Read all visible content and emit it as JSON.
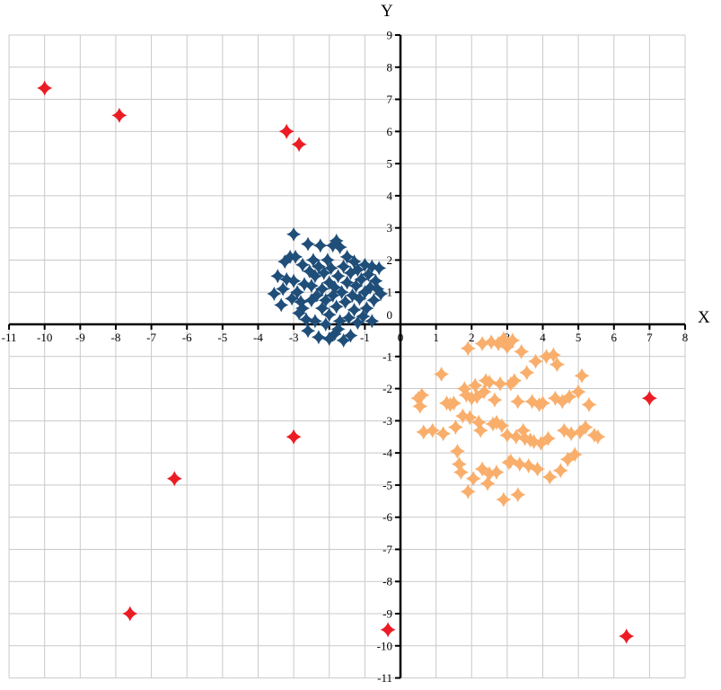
{
  "chart_data": {
    "type": "scatter",
    "title": "",
    "xlabel": "X",
    "ylabel": "Y",
    "xlim": [
      -11,
      8
    ],
    "ylim": [
      -11,
      9
    ],
    "x_ticks": [
      -11,
      -10,
      -9,
      -8,
      -7,
      -6,
      -5,
      -4,
      -3,
      -2,
      -1,
      0,
      1,
      2,
      3,
      4,
      5,
      6,
      7,
      8
    ],
    "y_ticks": [
      -11,
      -10,
      -9,
      -8,
      -7,
      -6,
      -5,
      -4,
      -3,
      -2,
      -1,
      0,
      1,
      2,
      3,
      4,
      5,
      6,
      7,
      8,
      9
    ],
    "grid": true,
    "legend": "none",
    "marker": "four-point-star",
    "colors": {
      "grid": "#C9C9C9",
      "axis": "#000000",
      "blue_cluster": "#1F4E79",
      "orange_cluster": "#F9AE6B",
      "outliers": "#EC1C24"
    },
    "series": [
      {
        "name": "blue-cluster",
        "color": "#1F4E79",
        "marker_radius": 7,
        "points": [
          [
            -3.55,
            0.95
          ],
          [
            -3.45,
            1.5
          ],
          [
            -3.35,
            0.6
          ],
          [
            -3.3,
            1.1
          ],
          [
            -3.25,
            1.95
          ],
          [
            -3.2,
            1.4
          ],
          [
            -3.1,
            2.1
          ],
          [
            -3.05,
            0.8
          ],
          [
            -3.0,
            2.8
          ],
          [
            -3.0,
            1.35
          ],
          [
            -2.95,
            2.1
          ],
          [
            -2.9,
            1.0
          ],
          [
            -2.85,
            0.35
          ],
          [
            -2.8,
            0.7
          ],
          [
            -2.75,
            1.85
          ],
          [
            -2.75,
            0.5
          ],
          [
            -2.7,
            1.25
          ],
          [
            -2.65,
            0.15
          ],
          [
            -2.6,
            2.5
          ],
          [
            -2.6,
            -0.2
          ],
          [
            -2.55,
            1.65
          ],
          [
            -2.5,
            0.75
          ],
          [
            -2.5,
            1.2
          ],
          [
            -2.45,
            2.0
          ],
          [
            -2.4,
            0.1
          ],
          [
            -2.4,
            1.5
          ],
          [
            -2.35,
            0.9
          ],
          [
            -2.3,
            -0.4
          ],
          [
            -2.3,
            1.8
          ],
          [
            -2.25,
            2.45
          ],
          [
            -2.2,
            0.5
          ],
          [
            -2.2,
            1.1
          ],
          [
            -2.15,
            1.6
          ],
          [
            -2.1,
            0.0
          ],
          [
            -2.1,
            0.75
          ],
          [
            -2.05,
            2.0
          ],
          [
            -2.0,
            1.3
          ],
          [
            -2.0,
            0.3
          ],
          [
            -2.0,
            -0.45
          ],
          [
            -1.95,
            1.75
          ],
          [
            -1.9,
            2.45
          ],
          [
            -1.9,
            0.9
          ],
          [
            -1.85,
            -0.3
          ],
          [
            -1.85,
            1.15
          ],
          [
            -1.8,
            2.6
          ],
          [
            -1.8,
            0.55
          ],
          [
            -1.75,
            1.5
          ],
          [
            -1.75,
            -0.15
          ],
          [
            -1.7,
            2.4
          ],
          [
            -1.7,
            0.1
          ],
          [
            -1.65,
            1.0
          ],
          [
            -1.6,
            -0.5
          ],
          [
            -1.6,
            1.8
          ],
          [
            -1.55,
            0.7
          ],
          [
            -1.5,
            1.3
          ],
          [
            -1.5,
            2.1
          ],
          [
            -1.45,
            0.2
          ],
          [
            -1.4,
            1.6
          ],
          [
            -1.4,
            -0.35
          ],
          [
            -1.35,
            0.9
          ],
          [
            -1.3,
            1.95
          ],
          [
            -1.3,
            0.45
          ],
          [
            -1.25,
            1.2
          ],
          [
            -1.2,
            0.05
          ],
          [
            -1.2,
            1.7
          ],
          [
            -1.15,
            0.8
          ],
          [
            -1.1,
            1.4
          ],
          [
            -1.05,
            0.25
          ],
          [
            -1.0,
            1.85
          ],
          [
            -1.0,
            1.0
          ],
          [
            -0.95,
            0.5
          ],
          [
            -0.9,
            1.55
          ],
          [
            -0.85,
            1.15
          ],
          [
            -0.8,
            0.1
          ],
          [
            -0.8,
            1.8
          ],
          [
            -0.75,
            0.75
          ],
          [
            -0.7,
            1.35
          ],
          [
            -0.65,
            1.1
          ],
          [
            -0.6,
            1.75
          ],
          [
            -0.55,
            0.95
          ]
        ]
      },
      {
        "name": "orange-cluster",
        "color": "#F9AE6B",
        "marker_radius": 7.5,
        "points": [
          [
            0.5,
            -2.3
          ],
          [
            0.55,
            -2.55
          ],
          [
            0.6,
            -2.2
          ],
          [
            0.65,
            -3.35
          ],
          [
            0.9,
            -3.3
          ],
          [
            1.15,
            -1.55
          ],
          [
            1.2,
            -3.4
          ],
          [
            1.3,
            -2.45
          ],
          [
            1.4,
            -2.5
          ],
          [
            1.5,
            -2.45
          ],
          [
            1.55,
            -3.2
          ],
          [
            1.6,
            -3.95
          ],
          [
            1.65,
            -4.35
          ],
          [
            1.7,
            -4.6
          ],
          [
            1.75,
            -2.85
          ],
          [
            1.8,
            -2.0
          ],
          [
            1.85,
            -2.2
          ],
          [
            1.9,
            -0.75
          ],
          [
            1.9,
            -5.2
          ],
          [
            1.95,
            -2.9
          ],
          [
            2.0,
            -2.3
          ],
          [
            2.05,
            -4.8
          ],
          [
            2.1,
            -1.9
          ],
          [
            2.15,
            -2.25
          ],
          [
            2.2,
            -3.05
          ],
          [
            2.25,
            -3.3
          ],
          [
            2.3,
            -0.6
          ],
          [
            2.3,
            -4.5
          ],
          [
            2.35,
            -2.1
          ],
          [
            2.4,
            -1.75
          ],
          [
            2.45,
            -4.95
          ],
          [
            2.5,
            -4.65
          ],
          [
            2.5,
            -1.8
          ],
          [
            2.55,
            -0.55
          ],
          [
            2.6,
            -3.1
          ],
          [
            2.65,
            -2.35
          ],
          [
            2.7,
            -3.05
          ],
          [
            2.7,
            -4.6
          ],
          [
            2.75,
            -0.6
          ],
          [
            2.8,
            -1.85
          ],
          [
            2.85,
            -3.15
          ],
          [
            2.9,
            -0.45
          ],
          [
            2.9,
            -5.45
          ],
          [
            2.95,
            -0.55
          ],
          [
            3.0,
            -0.7
          ],
          [
            3.0,
            -3.45
          ],
          [
            3.05,
            -4.3
          ],
          [
            3.1,
            -1.85
          ],
          [
            3.1,
            -4.25
          ],
          [
            3.15,
            -0.5
          ],
          [
            3.2,
            -1.75
          ],
          [
            3.25,
            -3.5
          ],
          [
            3.3,
            -5.3
          ],
          [
            3.3,
            -2.4
          ],
          [
            3.35,
            -4.35
          ],
          [
            3.4,
            -0.85
          ],
          [
            3.45,
            -3.3
          ],
          [
            3.5,
            -3.55
          ],
          [
            3.55,
            -1.5
          ],
          [
            3.6,
            -4.4
          ],
          [
            3.65,
            -3.6
          ],
          [
            3.7,
            -2.4
          ],
          [
            3.75,
            -3.65
          ],
          [
            3.8,
            -1.15
          ],
          [
            3.85,
            -4.5
          ],
          [
            3.9,
            -2.5
          ],
          [
            3.95,
            -3.7
          ],
          [
            4.0,
            -2.45
          ],
          [
            4.1,
            -1.0
          ],
          [
            4.15,
            -3.55
          ],
          [
            4.2,
            -4.75
          ],
          [
            4.3,
            -0.95
          ],
          [
            4.35,
            -2.3
          ],
          [
            4.4,
            -1.25
          ],
          [
            4.5,
            -4.55
          ],
          [
            4.55,
            -2.4
          ],
          [
            4.6,
            -3.3
          ],
          [
            4.7,
            -4.2
          ],
          [
            4.75,
            -2.25
          ],
          [
            4.8,
            -3.4
          ],
          [
            4.9,
            -4.05
          ],
          [
            5.0,
            -2.1
          ],
          [
            5.05,
            -3.35
          ],
          [
            5.1,
            -1.6
          ],
          [
            5.2,
            -3.2
          ],
          [
            5.3,
            -2.5
          ],
          [
            5.45,
            -3.45
          ],
          [
            5.55,
            -3.5
          ]
        ]
      },
      {
        "name": "red-outliers",
        "color": "#EC1C24",
        "marker_radius": 7.5,
        "points": [
          [
            -10.0,
            7.35
          ],
          [
            -7.9,
            6.5
          ],
          [
            -3.2,
            6.0
          ],
          [
            -2.85,
            5.6
          ],
          [
            -3.0,
            -3.5
          ],
          [
            -6.35,
            -4.8
          ],
          [
            -7.6,
            -9.0
          ],
          [
            -0.35,
            -9.5
          ],
          [
            7.0,
            -2.3
          ],
          [
            6.35,
            -9.7
          ]
        ]
      }
    ]
  }
}
